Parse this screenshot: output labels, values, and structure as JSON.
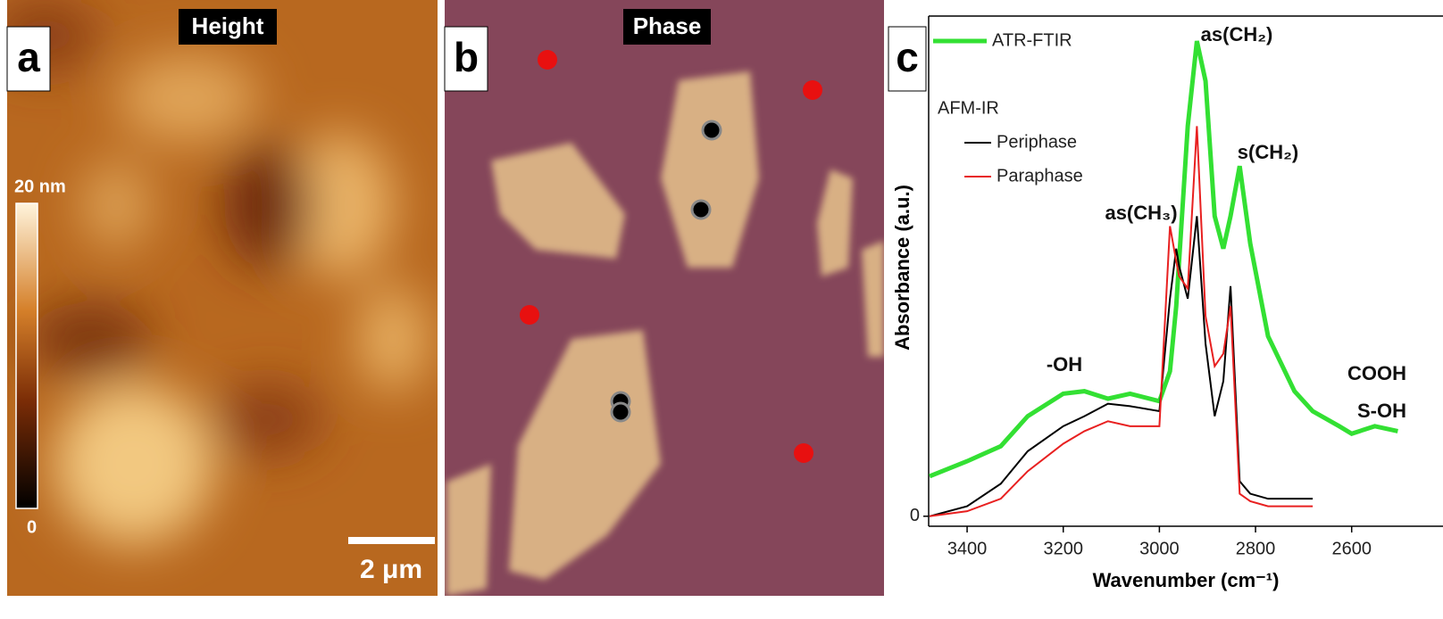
{
  "panels": {
    "a": {
      "label": "a",
      "title": "Height",
      "colorbar_max": "20 nm",
      "colorbar_min": "0",
      "scale_bar": "2 μm"
    },
    "b": {
      "label": "b",
      "title": "Phase"
    },
    "c": {
      "label": "c"
    }
  },
  "chart_data": {
    "type": "line",
    "xlabel": "Wavenumber (cm⁻¹)",
    "ylabel": "Absorbance (a.u.)",
    "legend_group": "AFM-IR",
    "x": [
      3478,
      3400,
      3330,
      3274,
      3200,
      3156,
      3107,
      3061,
      3000,
      2978,
      2965,
      2959,
      2941,
      2922,
      2904,
      2885,
      2867,
      2852,
      2833,
      2811,
      2774,
      2719,
      2681,
      2626,
      2600,
      2552,
      2504
    ],
    "series": [
      {
        "name": "ATR-FTIR",
        "color": "#33e033",
        "values": [
          0.08,
          0.11,
          0.14,
          0.2,
          0.245,
          0.25,
          0.235,
          0.245,
          0.23,
          0.29,
          0.42,
          0.51,
          0.78,
          0.95,
          0.87,
          0.6,
          0.535,
          0.6,
          0.7,
          0.545,
          0.36,
          0.25,
          0.21,
          0.18,
          0.165,
          0.18,
          0.17
        ]
      },
      {
        "name": "Periphase",
        "color": "#000000",
        "values": [
          0,
          0.02,
          0.065,
          0.13,
          0.18,
          0.2,
          0.225,
          0.22,
          0.21,
          0.435,
          0.535,
          0.5,
          0.435,
          0.6,
          0.345,
          0.2,
          0.27,
          0.46,
          0.07,
          0.045,
          0.035,
          0.035,
          0.035,
          null,
          null,
          null,
          null
        ]
      },
      {
        "name": "Paraphase",
        "color": "#e82020",
        "values": [
          0,
          0.01,
          0.035,
          0.09,
          0.145,
          0.17,
          0.19,
          0.18,
          0.18,
          0.58,
          0.51,
          0.48,
          0.455,
          0.78,
          0.4,
          0.3,
          0.325,
          0.42,
          0.045,
          0.03,
          0.02,
          0.02,
          0.02,
          null,
          null,
          null,
          null
        ]
      }
    ],
    "xlim": [
      3480,
      2410
    ],
    "ylim": [
      -0.02,
      1.0
    ],
    "xticks": [
      3400,
      3200,
      3000,
      2800,
      2600
    ],
    "yticks": [
      0
    ],
    "annotations": [
      "as(CH₂)",
      "s(CH₂)",
      "as(CH₃)",
      "-OH",
      "COOH",
      "S-OH"
    ]
  }
}
